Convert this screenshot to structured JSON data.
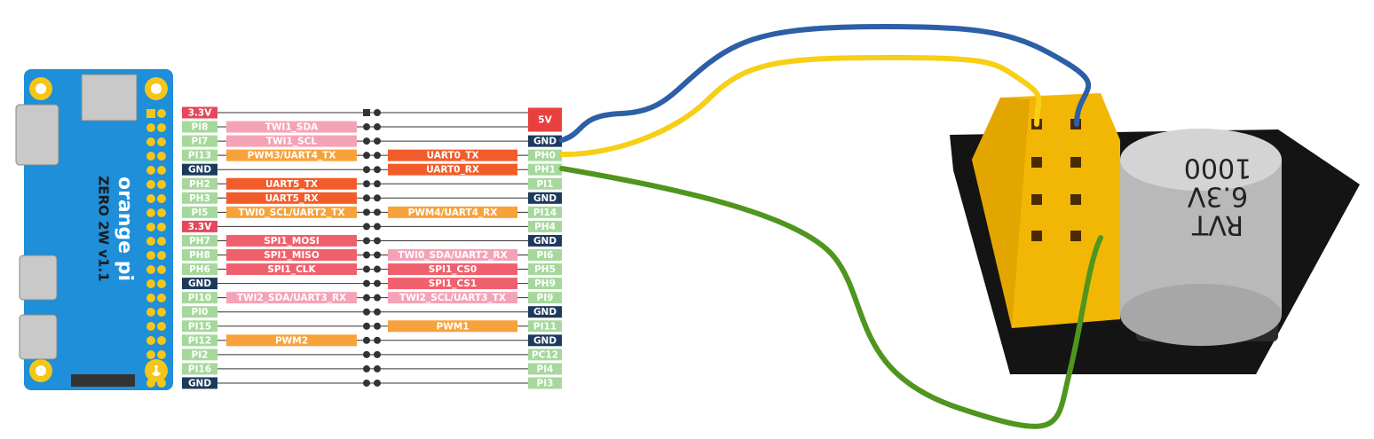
{
  "board": {
    "brand": "orange pi",
    "model": "ZERO 2W v1.1"
  },
  "pinout": {
    "rows": [
      {
        "left_pin": {
          "text": "3.3V",
          "color": "#e5485a"
        },
        "right_pin": {
          "text": "5V",
          "color": "#e8403f"
        }
      },
      {
        "left_pin": {
          "text": "PI8",
          "color": "#a6d89c"
        },
        "left_func": {
          "text": "TWI1_SDA",
          "color": "#f4a3b7"
        }
      },
      {
        "left_pin": {
          "text": "PI7",
          "color": "#a6d89c"
        },
        "left_func": {
          "text": "TWI1_SCL",
          "color": "#f4a3b7"
        },
        "right_pin": {
          "text": "GND",
          "color": "#1d3a5c"
        }
      },
      {
        "left_pin": {
          "text": "PI13",
          "color": "#a6d89c"
        },
        "left_func": {
          "text": "PWM3/UART4_TX",
          "color": "#f7a23a"
        },
        "right_func": {
          "text": "UART0_TX",
          "color": "#f25c2a"
        },
        "right_pin": {
          "text": "PH0",
          "color": "#a6d89c"
        }
      },
      {
        "left_pin": {
          "text": "GND",
          "color": "#1d3a5c"
        },
        "right_func": {
          "text": "UART0_RX",
          "color": "#f25c2a"
        },
        "right_pin": {
          "text": "PH1",
          "color": "#a6d89c"
        }
      },
      {
        "left_pin": {
          "text": "PH2",
          "color": "#a6d89c"
        },
        "left_func": {
          "text": "UART5_TX",
          "color": "#f25c2a"
        },
        "right_pin": {
          "text": "PI1",
          "color": "#a6d89c"
        }
      },
      {
        "left_pin": {
          "text": "PH3",
          "color": "#a6d89c"
        },
        "left_func": {
          "text": "UART5_RX",
          "color": "#f25c2a"
        },
        "right_pin": {
          "text": "GND",
          "color": "#1d3a5c"
        }
      },
      {
        "left_pin": {
          "text": "PI5",
          "color": "#a6d89c"
        },
        "left_func": {
          "text": "TWI0_SCL/UART2_TX",
          "color": "#f7a23a"
        },
        "right_func": {
          "text": "PWM4/UART4_RX",
          "color": "#f7a23a"
        },
        "right_pin": {
          "text": "PI14",
          "color": "#a6d89c"
        }
      },
      {
        "left_pin": {
          "text": "3.3V",
          "color": "#e5485a"
        },
        "right_pin": {
          "text": "PH4",
          "color": "#a6d89c"
        }
      },
      {
        "left_pin": {
          "text": "PH7",
          "color": "#a6d89c"
        },
        "left_func": {
          "text": "SPI1_MOSI",
          "color": "#f0606c"
        },
        "right_pin": {
          "text": "GND",
          "color": "#1d3a5c"
        }
      },
      {
        "left_pin": {
          "text": "PH8",
          "color": "#a6d89c"
        },
        "left_func": {
          "text": "SPI1_MISO",
          "color": "#f0606c"
        },
        "right_func": {
          "text": "TWI0_SDA/UART2_RX",
          "color": "#f4a3b7"
        },
        "right_pin": {
          "text": "PI6",
          "color": "#a6d89c"
        }
      },
      {
        "left_pin": {
          "text": "PH6",
          "color": "#a6d89c"
        },
        "left_func": {
          "text": "SPI1_CLK",
          "color": "#f0606c"
        },
        "right_func": {
          "text": "SPI1_CS0",
          "color": "#f0606c"
        },
        "right_pin": {
          "text": "PH5",
          "color": "#a6d89c"
        }
      },
      {
        "left_pin": {
          "text": "GND",
          "color": "#1d3a5c"
        },
        "right_func": {
          "text": "SPI1_CS1",
          "color": "#f0606c"
        },
        "right_pin": {
          "text": "PH9",
          "color": "#a6d89c"
        }
      },
      {
        "left_pin": {
          "text": "PI10",
          "color": "#a6d89c"
        },
        "left_func": {
          "text": "TWI2_SDA/UART3_RX",
          "color": "#f4a3b7"
        },
        "right_func": {
          "text": "TWI2_SCL/UART3_TX",
          "color": "#f4a3b7"
        },
        "right_pin": {
          "text": "PI9",
          "color": "#a6d89c"
        }
      },
      {
        "left_pin": {
          "text": "PI0",
          "color": "#a6d89c"
        },
        "right_pin": {
          "text": "GND",
          "color": "#1d3a5c"
        }
      },
      {
        "left_pin": {
          "text": "PI15",
          "color": "#a6d89c"
        },
        "right_func": {
          "text": "PWM1",
          "color": "#f7a23a"
        },
        "right_pin": {
          "text": "PI11",
          "color": "#a6d89c"
        }
      },
      {
        "left_pin": {
          "text": "PI12",
          "color": "#a6d89c"
        },
        "left_func": {
          "text": "PWM2",
          "color": "#f7a23a"
        },
        "right_pin": {
          "text": "GND",
          "color": "#1d3a5c"
        }
      },
      {
        "left_pin": {
          "text": "PI2",
          "color": "#a6d89c"
        },
        "right_pin": {
          "text": "PC12",
          "color": "#a6d89c"
        }
      },
      {
        "left_pin": {
          "text": "PI16",
          "color": "#a6d89c"
        },
        "right_pin": {
          "text": "PI4",
          "color": "#a6d89c"
        }
      },
      {
        "left_pin": {
          "text": "GND",
          "color": "#1d3a5c"
        },
        "right_pin": {
          "text": "PI3",
          "color": "#a6d89c"
        }
      }
    ]
  },
  "module": {
    "capacitor_lines": [
      "RVT",
      "6.3V",
      "1000"
    ]
  }
}
